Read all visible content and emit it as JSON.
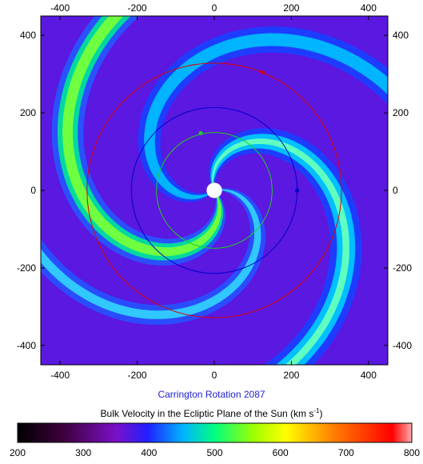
{
  "chart_data": {
    "type": "heatmap",
    "title": "Carrington Rotation 2087",
    "subtitle": "Bulk Velocity in the Ecliptic Plane of the Sun (km s",
    "subtitle_sup": "-1",
    "subtitle_end": ")",
    "xlim": [
      -450,
      450
    ],
    "ylim": [
      -450,
      450
    ],
    "x_ticks": [
      -400,
      -200,
      0,
      200,
      400
    ],
    "y_ticks": [
      400,
      200,
      0,
      -200,
      -400
    ],
    "colorbar": {
      "range": [
        200,
        800
      ],
      "ticks": [
        200,
        300,
        400,
        500,
        600,
        700,
        800
      ]
    },
    "orbits": [
      {
        "color": "#22cc22",
        "radius": 150,
        "planet": [
          -35,
          148
        ]
      },
      {
        "color": "#0000cc",
        "radius": 215,
        "planet": [
          215,
          0
        ]
      },
      {
        "color": "#dd0000",
        "radius": 330,
        "planet": [
          125,
          305
        ]
      }
    ],
    "sun_radius": 20
  }
}
